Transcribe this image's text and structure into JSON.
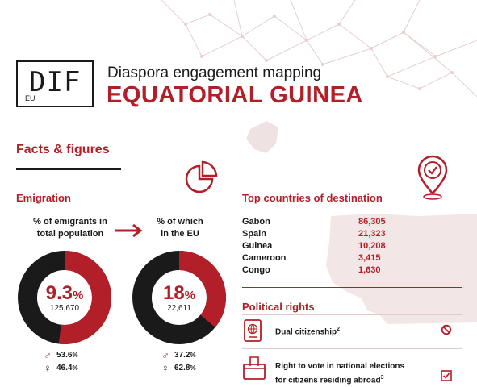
{
  "header": {
    "logo_text": "EUDIF",
    "logo_glyphs": "DIF",
    "title": "Diaspora engagement mapping",
    "country": "EQUATORIAL GUINEA"
  },
  "facts_heading": "Facts & figures",
  "emigration": {
    "heading": "Emigration",
    "total": {
      "label_line1": "% of emigrants in",
      "label_line2": "total population",
      "percent": "9.3",
      "percent_sign": "%",
      "count": "125,670",
      "share": 0.093,
      "male": "53.6",
      "female": "46.4",
      "gender_pct_sign": "%"
    },
    "eu": {
      "label_line1": "% of which",
      "label_line2": "in the EU",
      "percent": "18",
      "percent_sign": "%",
      "count": "22,611",
      "share": 0.18,
      "male": "37.2",
      "female": "62.8",
      "gender_pct_sign": "%"
    }
  },
  "destinations": {
    "heading": "Top countries of destination",
    "items": [
      {
        "country": "Gabon",
        "value": "86,305"
      },
      {
        "country": "Spain",
        "value": "21,323"
      },
      {
        "country": "Guinea",
        "value": "10,208"
      },
      {
        "country": "Cameroon",
        "value": "3,415"
      },
      {
        "country": "Congo",
        "value": "1,630"
      }
    ]
  },
  "political_rights": {
    "heading": "Political rights",
    "items": [
      {
        "line1": "Dual citizenship",
        "line2": "",
        "footnote": "2",
        "status_icon": "prohibited-icon"
      },
      {
        "line1": "Right to vote in national elections",
        "line2": "for citizens residing abroad",
        "footnote": "3",
        "status_icon": "checkbox-checked-icon"
      }
    ]
  },
  "icons": [
    "pie-chart-icon",
    "location-pin-check-icon",
    "arrow-right-icon",
    "passport-icon",
    "ballot-box-icon",
    "male-icon",
    "female-icon"
  ],
  "colors": {
    "accent": "#b21f28",
    "dark": "#1a1a1a",
    "map": "#ead6d6"
  }
}
